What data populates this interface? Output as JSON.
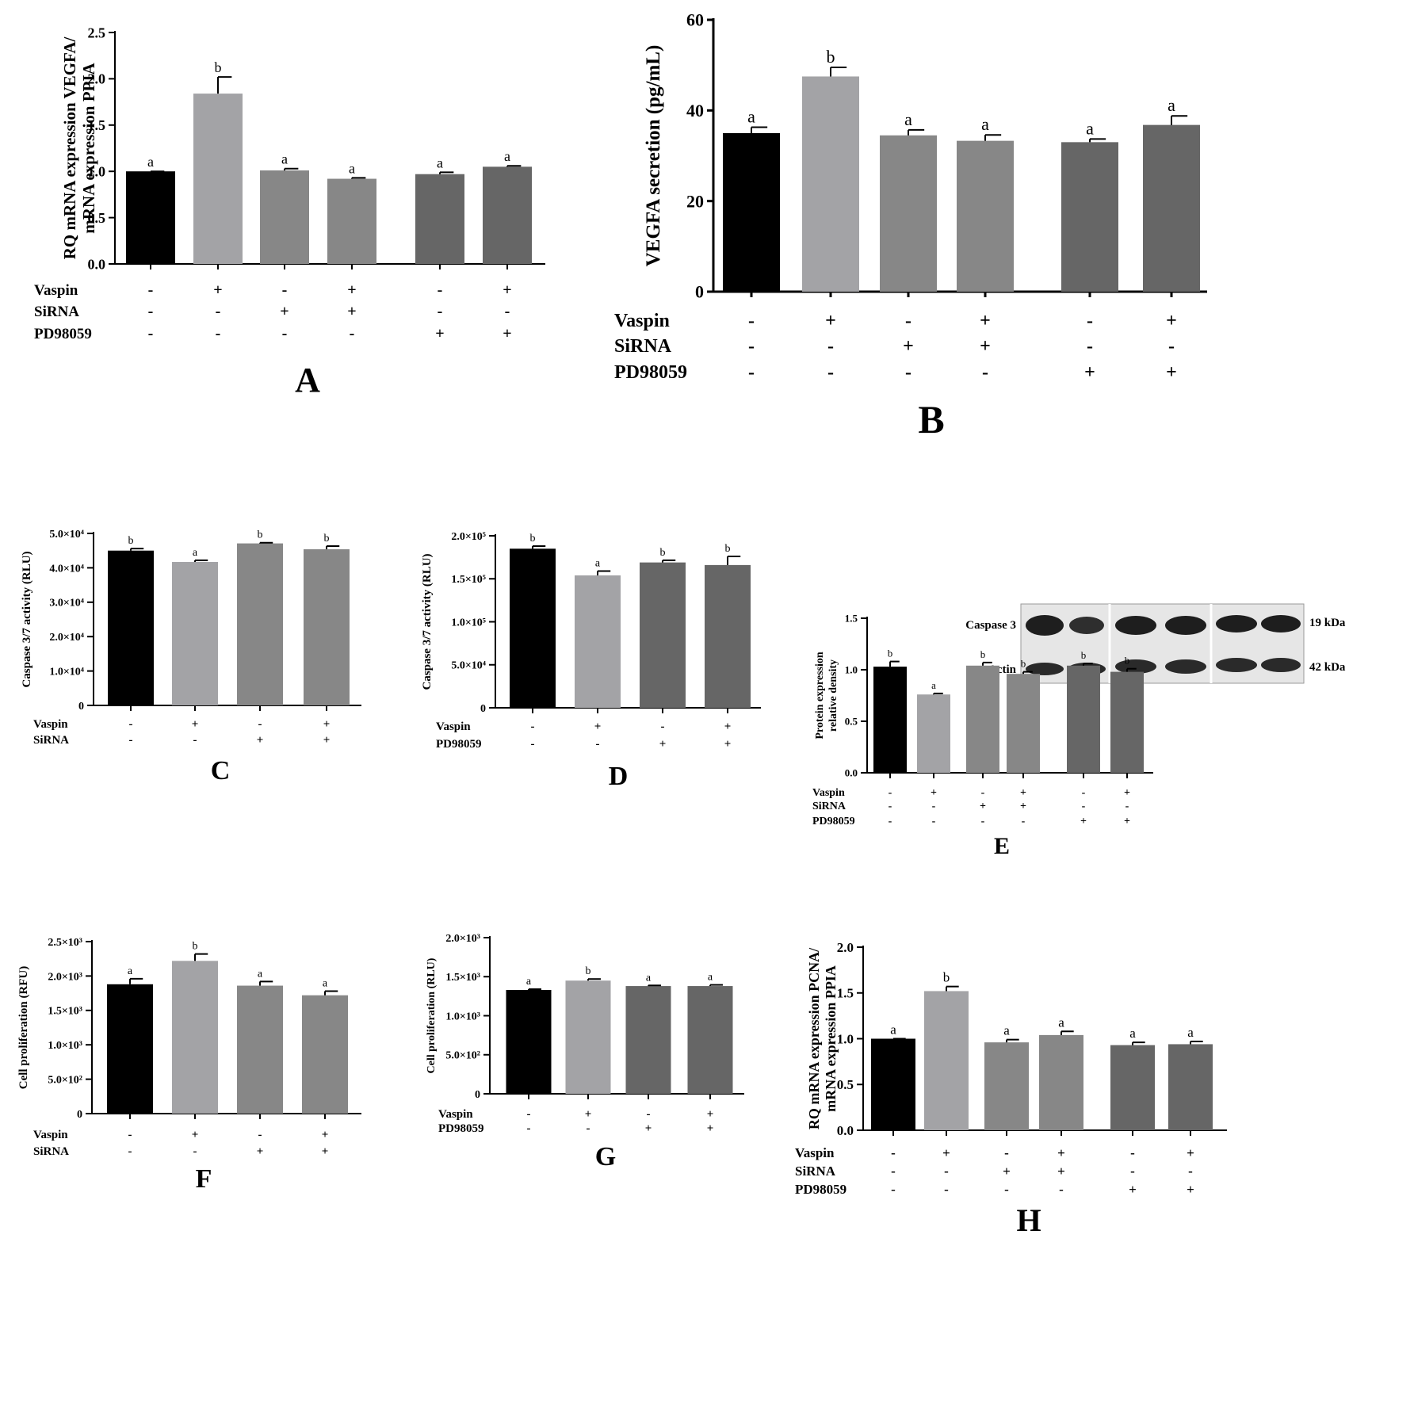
{
  "figure": {
    "fill_colors": [
      "#000000",
      "#a3a3a6",
      "#878787",
      "#878787",
      "#666666",
      "#666666"
    ],
    "western_blot": {
      "protein_label": "Caspase 3",
      "protein_kda": "19 kDa",
      "control_label": "Actin",
      "control_kda": "42 kDa"
    }
  },
  "chart_data": [
    {
      "id": "A",
      "panel_label": "A",
      "type": "bar",
      "ylabel_lines": [
        "RQ mRNA expression VEGFA/",
        "mRNA expression PPIA"
      ],
      "ylim": [
        0,
        2.5
      ],
      "ticks": [
        "0.0",
        "0.5",
        "1.0",
        "1.5",
        "2.0",
        "2.5"
      ],
      "values": [
        1.0,
        1.84,
        1.01,
        0.92,
        0.97,
        1.05
      ],
      "errors": [
        0.0,
        0.18,
        0.02,
        0.01,
        0.02,
        0.01
      ],
      "letters": [
        "a",
        "b",
        "a",
        "a",
        "a",
        "a"
      ],
      "treatments": [
        {
          "name": "Vaspin",
          "signs": [
            "-",
            "+",
            "-",
            "+",
            "-",
            "+"
          ]
        },
        {
          "name": "SiRNA",
          "signs": [
            "-",
            "-",
            "+",
            "+",
            "-",
            "-"
          ]
        },
        {
          "name": "PD98059",
          "signs": [
            "-",
            "-",
            "-",
            "-",
            "+",
            "+"
          ]
        }
      ]
    },
    {
      "id": "B",
      "panel_label": "B",
      "type": "bar",
      "ylabel_lines": [
        "VEGFA secretion (pg/mL)"
      ],
      "ylim": [
        0,
        60
      ],
      "ticks": [
        "0",
        "20",
        "40",
        "60"
      ],
      "values": [
        35,
        47.5,
        34.5,
        33.3,
        33.0,
        36.8
      ],
      "errors": [
        1.3,
        2.0,
        1.2,
        1.3,
        0.7,
        2.0
      ],
      "letters": [
        "a",
        "b",
        "a",
        "a",
        "a",
        "a"
      ],
      "treatments": [
        {
          "name": "Vaspin",
          "signs": [
            "-",
            "+",
            "-",
            "+",
            "-",
            "+"
          ]
        },
        {
          "name": "SiRNA",
          "signs": [
            "-",
            "-",
            "+",
            "+",
            "-",
            "-"
          ]
        },
        {
          "name": "PD98059",
          "signs": [
            "-",
            "-",
            "-",
            "-",
            "+",
            "+"
          ]
        }
      ]
    },
    {
      "id": "C",
      "panel_label": "C",
      "type": "bar",
      "ylabel_lines": [
        "Caspase 3/7 activity (RLU)"
      ],
      "ylim": [
        0,
        50000
      ],
      "ticks": [
        "0",
        "1.0×10⁴",
        "2.0×10⁴",
        "3.0×10⁴",
        "4.0×10⁴",
        "5.0×10⁴"
      ],
      "values": [
        45000,
        41700,
        47100,
        45400
      ],
      "errors": [
        600,
        500,
        200,
        900
      ],
      "letters": [
        "b",
        "a",
        "b",
        "b"
      ],
      "treatments": [
        {
          "name": "Vaspin",
          "signs": [
            "-",
            "+",
            "-",
            "+"
          ]
        },
        {
          "name": "SiRNA",
          "signs": [
            "-",
            "-",
            "+",
            "+"
          ]
        }
      ]
    },
    {
      "id": "D",
      "panel_label": "D",
      "type": "bar",
      "ylabel_lines": [
        "Caspase 3/7 activity (RLU)"
      ],
      "ylim": [
        0,
        200000
      ],
      "ticks": [
        "0",
        "5.0×10⁴",
        "1.0×10⁵",
        "1.5×10⁵",
        "2.0×10⁵"
      ],
      "values": [
        185000,
        154000,
        169000,
        166000
      ],
      "errors": [
        3000,
        5000,
        2500,
        10000
      ],
      "letters": [
        "b",
        "a",
        "b",
        "b"
      ],
      "treatments": [
        {
          "name": "Vaspin",
          "signs": [
            "-",
            "+",
            "-",
            "+"
          ]
        },
        {
          "name": "PD98059",
          "signs": [
            "-",
            "-",
            "+",
            "+"
          ]
        }
      ]
    },
    {
      "id": "E",
      "panel_label": "E",
      "type": "bar",
      "ylabel_lines": [
        "Protein expression",
        "relative density"
      ],
      "ylim": [
        0,
        1.5
      ],
      "ticks": [
        "0.0",
        "0.5",
        "1.0",
        "1.5"
      ],
      "values": [
        1.03,
        0.76,
        1.04,
        0.96,
        1.04,
        0.98
      ],
      "errors": [
        0.05,
        0.01,
        0.03,
        0.02,
        0.02,
        0.03
      ],
      "letters": [
        "b",
        "a",
        "b",
        "b",
        "b",
        "b"
      ],
      "treatments": [
        {
          "name": "Vaspin",
          "signs": [
            "-",
            "+",
            "-",
            "+",
            "-",
            "+"
          ]
        },
        {
          "name": "SiRNA",
          "signs": [
            "-",
            "-",
            "+",
            "+",
            "-",
            "-"
          ]
        },
        {
          "name": "PD98059",
          "signs": [
            "-",
            "-",
            "-",
            "-",
            "+",
            "+"
          ]
        }
      ]
    },
    {
      "id": "F",
      "panel_label": "F",
      "type": "bar",
      "ylabel_lines": [
        "Cell proliferation (RFU)"
      ],
      "ylim": [
        0,
        2500
      ],
      "ticks": [
        "0",
        "5.0×10²",
        "1.0×10³",
        "1.5×10³",
        "2.0×10³",
        "2.5×10³"
      ],
      "values": [
        1880,
        2220,
        1860,
        1720
      ],
      "errors": [
        80,
        100,
        60,
        60
      ],
      "letters": [
        "a",
        "b",
        "a",
        "a"
      ],
      "treatments": [
        {
          "name": "Vaspin",
          "signs": [
            "-",
            "+",
            "-",
            "+"
          ]
        },
        {
          "name": "SiRNA",
          "signs": [
            "-",
            "-",
            "+",
            "+"
          ]
        }
      ]
    },
    {
      "id": "G",
      "panel_label": "G",
      "type": "bar",
      "ylabel_lines": [
        "Cell proliferation (RLU)"
      ],
      "ylim": [
        0,
        2000
      ],
      "ticks": [
        "0",
        "5.0×10²",
        "1.0×10³",
        "1.5×10³",
        "2.0×10³"
      ],
      "values": [
        1330,
        1450,
        1380,
        1380
      ],
      "errors": [
        10,
        20,
        8,
        15
      ],
      "letters": [
        "a",
        "b",
        "a",
        "a"
      ],
      "treatments": [
        {
          "name": "Vaspin",
          "signs": [
            "-",
            "+",
            "-",
            "+"
          ]
        },
        {
          "name": "PD98059",
          "signs": [
            "-",
            "-",
            "+",
            "+"
          ]
        }
      ]
    },
    {
      "id": "H",
      "panel_label": "H",
      "type": "bar",
      "ylabel_lines": [
        "RQ mRNA expression PCNA/",
        "mRNA expression PPIA"
      ],
      "ylim": [
        0,
        2.0
      ],
      "ticks": [
        "0.0",
        "0.5",
        "1.0",
        "1.5",
        "2.0"
      ],
      "values": [
        1.0,
        1.52,
        0.96,
        1.04,
        0.93,
        0.94
      ],
      "errors": [
        0.0,
        0.05,
        0.03,
        0.04,
        0.03,
        0.03
      ],
      "letters": [
        "a",
        "b",
        "a",
        "a",
        "a",
        "a"
      ],
      "treatments": [
        {
          "name": "Vaspin",
          "signs": [
            "-",
            "+",
            "-",
            "+",
            "-",
            "+"
          ]
        },
        {
          "name": "SiRNA",
          "signs": [
            "-",
            "-",
            "+",
            "+",
            "-",
            "-"
          ]
        },
        {
          "name": "PD98059",
          "signs": [
            "-",
            "-",
            "-",
            "-",
            "+",
            "+"
          ]
        }
      ]
    }
  ]
}
